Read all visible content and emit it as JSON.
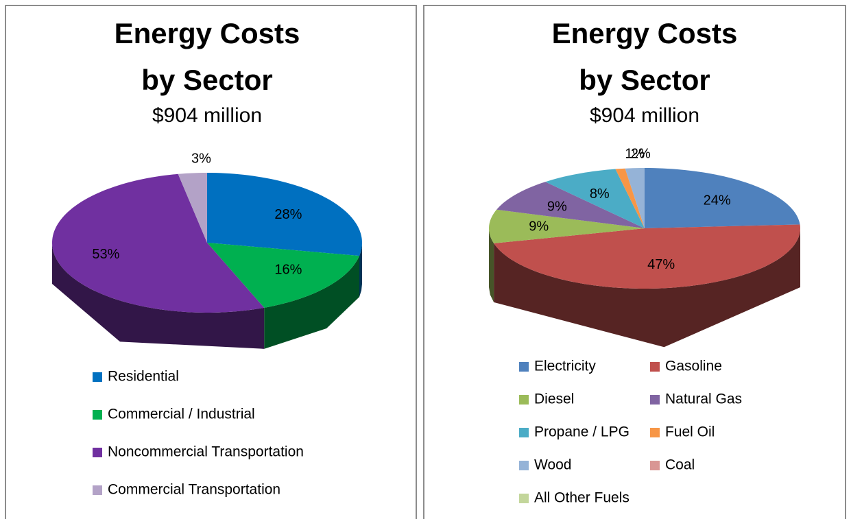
{
  "chart_data": [
    {
      "type": "pie3d",
      "title": [
        "Energy Costs",
        "by Sector"
      ],
      "subtitle": "$904 million",
      "categories": [
        "Residential",
        "Commercial / Industrial",
        "Noncommercial Transportation",
        "Commercial Transportation"
      ],
      "values": [
        28,
        16,
        53,
        3
      ],
      "value_labels": [
        "28%",
        "16%",
        "53%",
        "3%"
      ],
      "colors": [
        "#0070c0",
        "#00b050",
        "#7030a0",
        "#b3a2c7"
      ],
      "legend": "bottom"
    },
    {
      "type": "pie3d",
      "title": [
        "Energy Costs",
        "by Sector"
      ],
      "subtitle": "$904 million",
      "categories": [
        "Electricity",
        "Gasoline",
        "Diesel",
        "Natural Gas",
        "Propane / LPG",
        "Fuel Oil",
        "Wood",
        "Coal",
        "All Other Fuels"
      ],
      "values": [
        24,
        47,
        9,
        9,
        8,
        1,
        2,
        0,
        0
      ],
      "value_labels": [
        "24%",
        "47%",
        "9%",
        "9%",
        "8%",
        "1%",
        "2%",
        null,
        null
      ],
      "colors": [
        "#4f81bd",
        "#c0504d",
        "#9bbb59",
        "#8064a2",
        "#4bacc6",
        "#f79646",
        "#95b3d7",
        "#d99694",
        "#c3d69b"
      ],
      "legend": "bottom"
    }
  ]
}
